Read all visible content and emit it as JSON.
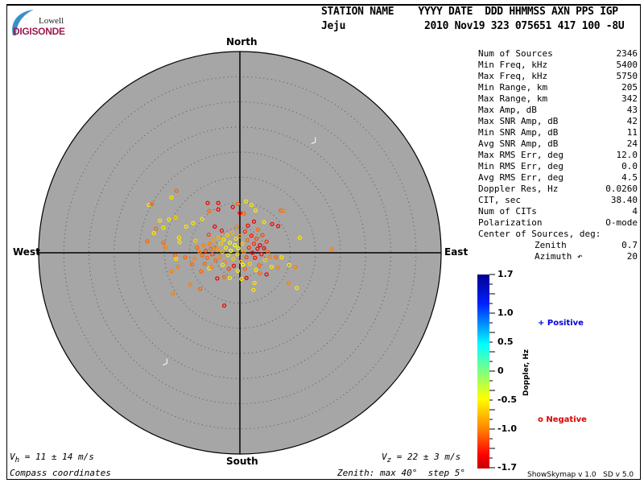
{
  "logo": {
    "top": "Lowell",
    "bottom": "DIGISONDE"
  },
  "header": {
    "labels": "STATION NAME    YYYY DATE  DDD HHMMSS AXN PPS IGP",
    "station": "Jeju",
    "values": "2010 Nov19 323 075651 417 100 -8U"
  },
  "compass": {
    "north": "North",
    "south": "South",
    "east": "East",
    "west": "West"
  },
  "stats": [
    {
      "label": "Num of Sources",
      "value": "2346"
    },
    {
      "label": "Min Freq, kHz",
      "value": "5400"
    },
    {
      "label": "Max Freq, kHz",
      "value": "5750"
    },
    {
      "label": "Min Range, km",
      "value": "205"
    },
    {
      "label": "Max Range, km",
      "value": "342"
    },
    {
      "label": "Max Amp, dB",
      "value": "43"
    },
    {
      "label": "Max SNR Amp, dB",
      "value": "42"
    },
    {
      "label": "Min SNR Amp, dB",
      "value": "11"
    },
    {
      "label": "Avg SNR Amp, dB",
      "value": "24"
    },
    {
      "label": "Max RMS Err, deg",
      "value": "12.0"
    },
    {
      "label": "Min RMS Err, deg",
      "value": "0.0"
    },
    {
      "label": "Avg RMS Err, deg",
      "value": "4.5"
    },
    {
      "label": "Doppler Res, Hz",
      "value": "0.0260"
    },
    {
      "label": "CIT, sec",
      "value": "38.40"
    },
    {
      "label": "Num of CITs",
      "value": "4"
    },
    {
      "label": "Polarization",
      "value": "O-mode"
    }
  ],
  "center": {
    "title": "Center of Sources, deg:",
    "zenith_label": "Zenith",
    "zenith_value": "0.7",
    "azimuth_label": "Azimuth ↶",
    "azimuth_value": "20"
  },
  "footer": {
    "vh": "= 11 ± 14 m/s",
    "vh_sym": "V",
    "vh_sub": "h",
    "vz": "= 22 ± 3 m/s",
    "vz_sym": "V",
    "vz_sub": "z",
    "coords": "Compass coordinates",
    "zenith": "Zenith: max 40°  step 5°",
    "version": "ShowSkymap v 1.0   SD v 5.0"
  },
  "legend": {
    "positive": "Positive",
    "negative": "Negative",
    "positive_symbol": "+",
    "negative_symbol": "o",
    "positive_color": "#0000dd",
    "negative_color": "#dd0000"
  },
  "chart_data": {
    "type": "scatter",
    "projection": "polar sky map (east/north offsets in degrees of zenith)",
    "zenith_max": 40,
    "zenith_step": 5,
    "colorbar": {
      "label": "Doppler, Hz",
      "range": [
        -1.7,
        1.7
      ],
      "ticks": [
        "1.7",
        "1.0",
        "0.5",
        "0",
        "-0.5",
        "-1.0",
        "-1.7"
      ],
      "colormap": "jet"
    },
    "point_fields": [
      "east_deg",
      "north_deg",
      "doppler_hz"
    ],
    "points": [
      [
        -12.6,
        12.3,
        -1.1
      ],
      [
        -13.6,
        11.0,
        -0.6
      ],
      [
        -18.1,
        9.5,
        -0.6
      ],
      [
        -17.5,
        9.7,
        -1.1
      ],
      [
        -6.4,
        9.9,
        -1.5
      ],
      [
        -4.3,
        9.9,
        -1.5
      ],
      [
        -0.4,
        9.7,
        -1.1
      ],
      [
        1.2,
        10.2,
        -0.6
      ],
      [
        2.3,
        9.5,
        -0.6
      ],
      [
        3.1,
        8.4,
        -0.6
      ],
      [
        8.1,
        8.4,
        -1.1
      ],
      [
        8.7,
        8.3,
        -1.0
      ],
      [
        -1.4,
        9.1,
        -1.5
      ],
      [
        -4.3,
        8.6,
        -1.5
      ],
      [
        -6.1,
        8.3,
        -1.1
      ],
      [
        -15.9,
        6.4,
        -0.6
      ],
      [
        -14.1,
        6.6,
        -0.6
      ],
      [
        -12.8,
        7.0,
        -0.7
      ],
      [
        -16.7,
        4.8,
        -1.1
      ],
      [
        -17.1,
        3.9,
        -0.6
      ],
      [
        -15.2,
        5.0,
        -0.6
      ],
      [
        -18.4,
        2.3,
        -1.1
      ],
      [
        -15.2,
        2.0,
        -1.1
      ],
      [
        -14.8,
        1.1,
        -1.0
      ],
      [
        -12.1,
        3.0,
        -0.6
      ],
      [
        -12.0,
        2.1,
        -0.6
      ],
      [
        7.6,
        5.3,
        -1.5
      ],
      [
        6.4,
        5.7,
        -1.5
      ],
      [
        11.9,
        3.0,
        -0.6
      ],
      [
        18.3,
        0.7,
        -1.0
      ],
      [
        -12.9,
        -0.5,
        -1.1
      ],
      [
        -12.7,
        -1.2,
        -0.6
      ],
      [
        -10.9,
        -0.9,
        -1.1
      ],
      [
        -12.3,
        -2.8,
        -1.0
      ],
      [
        -13.6,
        -3.7,
        -1.0
      ],
      [
        -9.5,
        -2.3,
        -1.1
      ],
      [
        -7.7,
        -3.7,
        -1.1
      ],
      [
        -6.1,
        -3.1,
        -0.6
      ],
      [
        -4.5,
        -5.1,
        -1.5
      ],
      [
        -3.1,
        -4.8,
        -1.1
      ],
      [
        -2.0,
        -5.0,
        -0.6
      ],
      [
        0.3,
        -5.2,
        -0.6
      ],
      [
        1.3,
        -5.0,
        -1.5
      ],
      [
        2.9,
        -6.0,
        -0.6
      ],
      [
        2.7,
        -7.4,
        -0.6
      ],
      [
        -3.1,
        -10.5,
        -1.5
      ],
      [
        -7.9,
        -7.2,
        -1.1
      ],
      [
        -9.9,
        -6.3,
        -1.0
      ],
      [
        -13.3,
        -8.2,
        -1.0
      ],
      [
        9.7,
        -6.0,
        -1.0
      ],
      [
        11.3,
        -7.0,
        -0.6
      ],
      [
        11.0,
        -2.8,
        -1.0
      ],
      [
        9.8,
        -2.4,
        -0.6
      ],
      [
        7.6,
        -3.0,
        -1.0
      ],
      [
        5.3,
        -4.3,
        -1.5
      ],
      [
        4.0,
        -4.1,
        -1.1
      ],
      [
        7.2,
        -0.9,
        -1.1
      ],
      [
        8.3,
        -0.9,
        -0.6
      ],
      [
        6.3,
        -2.8,
        -0.6
      ],
      [
        -7.5,
        6.7,
        -0.6
      ],
      [
        -5.0,
        5.2,
        -1.5
      ],
      [
        -9.3,
        5.9,
        -0.6
      ],
      [
        -10.7,
        5.2,
        -0.6
      ],
      [
        4.8,
        6.1,
        -0.6
      ],
      [
        2.8,
        6.2,
        -1.5
      ],
      [
        0.0,
        7.9,
        -1.5
      ],
      [
        0.8,
        7.8,
        -1.1
      ],
      [
        -8.5,
        1.0,
        -1.1
      ],
      [
        -8.0,
        0.2,
        -1.0
      ],
      [
        -7.5,
        -0.5,
        -1.1
      ],
      [
        -7.2,
        1.5,
        -1.0
      ],
      [
        -6.8,
        0.4,
        -1.2
      ],
      [
        -6.5,
        -1.0,
        -1.1
      ],
      [
        -6.0,
        1.8,
        -1.0
      ],
      [
        -5.8,
        0.8,
        -1.1
      ],
      [
        -5.5,
        -0.3,
        -1.2
      ],
      [
        -5.2,
        2.5,
        -0.9
      ],
      [
        -5.0,
        1.2,
        -1.0
      ],
      [
        -4.8,
        -1.5,
        -1.1
      ],
      [
        -4.5,
        0.5,
        -0.9
      ],
      [
        -4.2,
        3.0,
        -0.8
      ],
      [
        -4.0,
        -0.8,
        -1.0
      ],
      [
        -3.8,
        1.8,
        -0.7
      ],
      [
        -3.5,
        0.2,
        -0.8
      ],
      [
        -3.2,
        2.6,
        -0.6
      ],
      [
        -3.0,
        -1.9,
        -1.0
      ],
      [
        -2.8,
        1.0,
        -0.6
      ],
      [
        -2.5,
        3.5,
        -0.7
      ],
      [
        -2.3,
        -0.5,
        -0.6
      ],
      [
        -2.0,
        2.0,
        -0.5
      ],
      [
        -1.8,
        0.4,
        -0.5
      ],
      [
        -1.5,
        4.0,
        -0.8
      ],
      [
        -1.3,
        -1.2,
        -0.7
      ],
      [
        -1.0,
        1.5,
        -0.5
      ],
      [
        -0.8,
        2.8,
        -0.6
      ],
      [
        -0.5,
        -0.3,
        -0.6
      ],
      [
        -0.3,
        0.9,
        -0.5
      ],
      [
        0.0,
        3.3,
        -0.9
      ],
      [
        0.2,
        -1.8,
        -0.8
      ],
      [
        0.5,
        1.8,
        -0.7
      ],
      [
        0.8,
        0.2,
        -0.9
      ],
      [
        1.0,
        4.2,
        -1.3
      ],
      [
        1.3,
        -0.9,
        -1.2
      ],
      [
        1.5,
        2.5,
        -1.1
      ],
      [
        1.8,
        1.0,
        -1.3
      ],
      [
        2.0,
        -2.2,
        -0.7
      ],
      [
        2.3,
        3.4,
        -1.4
      ],
      [
        2.5,
        0.0,
        -1.5
      ],
      [
        2.8,
        1.8,
        -1.3
      ],
      [
        3.0,
        -1.0,
        -1.4
      ],
      [
        3.3,
        2.8,
        -1.2
      ],
      [
        3.5,
        0.8,
        -1.5
      ],
      [
        3.8,
        -2.5,
        -1.1
      ],
      [
        4.0,
        1.5,
        -1.6
      ],
      [
        4.3,
        -0.3,
        -1.4
      ],
      [
        4.5,
        3.5,
        -1.2
      ],
      [
        4.8,
        0.9,
        -1.5
      ],
      [
        5.0,
        -1.5,
        -0.7
      ],
      [
        5.3,
        2.2,
        -1.3
      ],
      [
        5.6,
        0.2,
        -1.1
      ],
      [
        6.0,
        -0.8,
        -1.0
      ],
      [
        -9.0,
        -1.2,
        -1.0
      ],
      [
        -8.8,
        2.4,
        -0.7
      ],
      [
        -7.0,
        -2.2,
        -1.1
      ],
      [
        -6.2,
        3.6,
        -1.2
      ],
      [
        -3.6,
        4.4,
        -1.4
      ],
      [
        -0.6,
        5.2,
        -1.0
      ],
      [
        1.6,
        5.4,
        -1.5
      ],
      [
        3.6,
        4.6,
        -1.1
      ],
      [
        -2.2,
        -3.2,
        -1.2
      ],
      [
        -0.4,
        -3.6,
        -0.6
      ],
      [
        1.0,
        -3.2,
        -1.1
      ],
      [
        3.2,
        -3.4,
        -0.6
      ],
      [
        -5.6,
        -2.8,
        -1.0
      ],
      [
        -1.2,
        -2.6,
        -1.5
      ],
      [
        0.6,
        -2.4,
        -0.5
      ],
      [
        -3.4,
        -2.4,
        -0.6
      ]
    ],
    "markers": [
      [
        15.0,
        22.0
      ],
      [
        -14.5,
        -22.0
      ]
    ]
  }
}
